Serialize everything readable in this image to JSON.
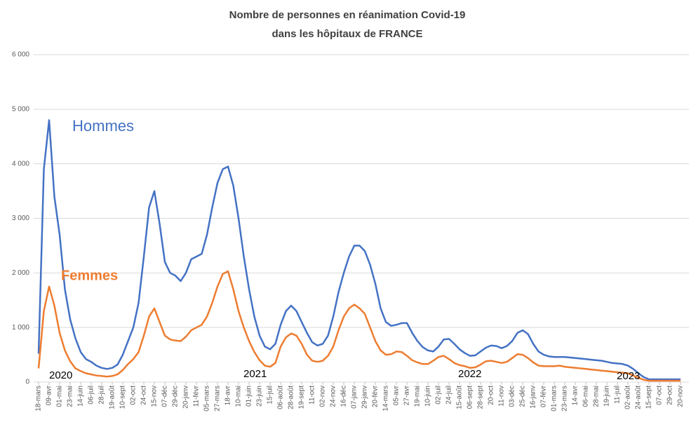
{
  "chart_data": {
    "type": "line",
    "title": "Nombre de personnes  en réanimation  Covid-19",
    "subtitle": "dans les hôpitaux de FRANCE",
    "categories": [
      "18-mars",
      null,
      "09-avr",
      null,
      "01-mai",
      null,
      "23-mai",
      null,
      "14-juin",
      null,
      "06-juil",
      null,
      "28-juil",
      null,
      "19-août",
      null,
      "10-sept",
      null,
      "02-oct",
      null,
      "24-oct",
      null,
      "15-nov",
      null,
      "07-déc",
      null,
      "29-déc",
      null,
      "20-janv",
      null,
      "11-févr",
      null,
      "05-mars",
      null,
      "27-mars",
      null,
      "18-avr",
      null,
      "10-mai",
      null,
      "01-juin",
      null,
      "23-juin",
      null,
      "15-juil",
      null,
      "06-août",
      null,
      "28-août",
      null,
      "19-sept",
      null,
      "11-oct",
      null,
      "02-nov",
      null,
      "24-nov",
      null,
      "16-déc",
      null,
      "07-janv",
      null,
      "29-janv",
      null,
      "20-févr",
      null,
      "14-mars",
      null,
      "05-avr",
      null,
      "27-avr",
      null,
      "19-mai",
      null,
      "10-juin",
      null,
      "02-juil",
      null,
      "24-juil",
      null,
      "15-août",
      null,
      "06-sept",
      null,
      "28-sept",
      null,
      "20-oct",
      null,
      "11-nov",
      null,
      "03-déc",
      null,
      "25-déc",
      null,
      "16-janv",
      null,
      "07-févr",
      null,
      "01-mars",
      null,
      "23-mars",
      null,
      "14-avr",
      null,
      "06-mai",
      null,
      "28-mai",
      null,
      "19-juin",
      null,
      "11-juil",
      null,
      "02-août",
      null,
      "24-août",
      null,
      "15-sept",
      null,
      "07-oct",
      null,
      "29-oct",
      null,
      "20-nov"
    ],
    "series": [
      {
        "name": "Hommes",
        "color": "#4472c4",
        "values": [
          520,
          3900,
          4800,
          3400,
          2700,
          1700,
          1150,
          800,
          550,
          420,
          370,
          300,
          260,
          240,
          260,
          320,
          500,
          750,
          1000,
          1450,
          2300,
          3200,
          3500,
          2900,
          2200,
          2000,
          1950,
          1850,
          2000,
          2250,
          2300,
          2350,
          2700,
          3200,
          3650,
          3900,
          3950,
          3600,
          3000,
          2300,
          1700,
          1200,
          850,
          650,
          600,
          700,
          1050,
          1300,
          1400,
          1300,
          1100,
          900,
          730,
          670,
          700,
          850,
          1200,
          1650,
          2000,
          2300,
          2500,
          2500,
          2400,
          2150,
          1800,
          1350,
          1100,
          1030,
          1050,
          1080,
          1080,
          900,
          750,
          640,
          580,
          560,
          650,
          780,
          790,
          700,
          600,
          530,
          480,
          490,
          560,
          630,
          670,
          660,
          620,
          660,
          750,
          900,
          950,
          880,
          700,
          560,
          500,
          470,
          460,
          460,
          460,
          450,
          440,
          430,
          420,
          410,
          400,
          390,
          370,
          350,
          340,
          330,
          300,
          240,
          160,
          90,
          50,
          50,
          50,
          50,
          50,
          50,
          50
        ]
      },
      {
        "name": "Femmes",
        "color": "#ed7d31",
        "values": [
          250,
          1300,
          1750,
          1400,
          900,
          580,
          380,
          250,
          200,
          160,
          140,
          120,
          110,
          100,
          110,
          140,
          220,
          330,
          420,
          550,
          850,
          1200,
          1350,
          1100,
          850,
          780,
          760,
          750,
          830,
          950,
          1000,
          1050,
          1200,
          1450,
          1750,
          1980,
          2030,
          1700,
          1300,
          1000,
          750,
          550,
          400,
          300,
          280,
          350,
          650,
          820,
          890,
          850,
          700,
          500,
          390,
          370,
          390,
          480,
          650,
          950,
          1200,
          1350,
          1420,
          1350,
          1250,
          1000,
          750,
          580,
          500,
          510,
          560,
          550,
          480,
          400,
          360,
          330,
          330,
          390,
          460,
          480,
          420,
          350,
          310,
          290,
          260,
          270,
          320,
          380,
          390,
          370,
          350,
          370,
          440,
          510,
          500,
          440,
          360,
          300,
          290,
          290,
          290,
          300,
          280,
          270,
          260,
          250,
          240,
          230,
          220,
          210,
          200,
          190,
          180,
          170,
          160,
          120,
          80,
          40,
          25,
          25,
          25,
          25,
          25,
          25,
          25
        ]
      }
    ],
    "annotations": [
      "2020",
      "2021",
      "2022",
      "2023"
    ],
    "ylim": [
      0,
      6000
    ],
    "yticks": [
      0,
      {
        "value": 1000,
        "label": "1 000"
      },
      {
        "value": 2000,
        "label": "2 000"
      },
      {
        "value": 3000,
        "label": "3 000"
      },
      {
        "value": 4000,
        "label": "4 000"
      },
      {
        "value": 5000,
        "label": "5 000"
      },
      {
        "value": 6000,
        "label": "6 000"
      }
    ],
    "grid": true
  }
}
